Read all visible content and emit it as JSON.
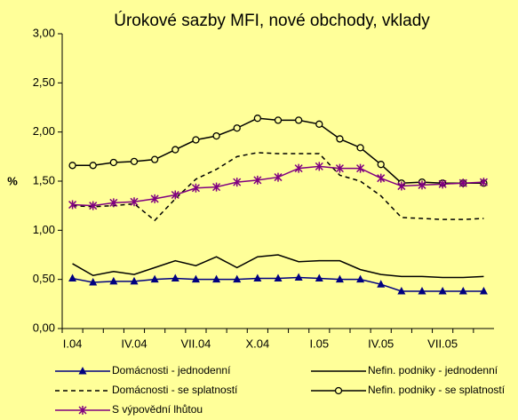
{
  "chart_data": {
    "type": "line",
    "title": "Úrokové sazby MFI, nové obchody, vklady",
    "y_label": "%",
    "categories": [
      "I.04",
      null,
      null,
      "IV.04",
      null,
      null,
      "VII.04",
      null,
      null,
      "X.04",
      null,
      null,
      "I.05",
      null,
      null,
      "IV.05",
      null,
      null,
      "VII.05",
      null,
      null
    ],
    "ylim": [
      0,
      3
    ],
    "yticks": [
      {
        "value": 0,
        "label": "0,00"
      },
      {
        "value": 0.5,
        "label": "0,50"
      },
      {
        "value": 1,
        "label": "1,00"
      },
      {
        "value": 1.5,
        "label": "1,50"
      },
      {
        "value": 2,
        "label": "2,00"
      },
      {
        "value": 2.5,
        "label": "2,50"
      },
      {
        "value": 3,
        "label": "3,00"
      }
    ],
    "series": [
      {
        "name": "Domácnosti - jednodenní",
        "color": "#000080",
        "marker": "triangle",
        "dash": false,
        "values": [
          0.51,
          0.47,
          0.48,
          0.48,
          0.5,
          0.51,
          0.5,
          0.5,
          0.5,
          0.51,
          0.51,
          0.52,
          0.51,
          0.5,
          0.5,
          0.45,
          0.38,
          0.38,
          0.38,
          0.38,
          0.38
        ]
      },
      {
        "name": "Nefin. podniky - jednodenní",
        "color": "#000000",
        "marker": "none",
        "dash": false,
        "values": [
          0.66,
          0.54,
          0.58,
          0.55,
          0.62,
          0.69,
          0.64,
          0.73,
          0.62,
          0.73,
          0.75,
          0.68,
          0.69,
          0.69,
          0.6,
          0.55,
          0.53,
          0.53,
          0.52,
          0.52,
          0.53
        ]
      },
      {
        "name": "Domácnosti - se splatností",
        "color": "#000000",
        "marker": "none",
        "dash": true,
        "values": [
          1.25,
          1.24,
          1.25,
          1.27,
          1.1,
          1.32,
          1.52,
          1.62,
          1.75,
          1.79,
          1.78,
          1.78,
          1.78,
          1.56,
          1.5,
          1.35,
          1.13,
          1.12,
          1.11,
          1.11,
          1.12
        ]
      },
      {
        "name": "Nefin. podniky - se splatností",
        "color": "#000000",
        "marker": "circle",
        "dash": false,
        "values": [
          1.66,
          1.66,
          1.69,
          1.7,
          1.72,
          1.82,
          1.92,
          1.96,
          2.04,
          2.14,
          2.12,
          2.12,
          2.08,
          1.93,
          1.84,
          1.67,
          1.48,
          1.49,
          1.48,
          1.48,
          1.48
        ]
      },
      {
        "name": "S výpovědní lhůtou",
        "color": "#800080",
        "marker": "star",
        "dash": false,
        "values": [
          1.26,
          1.25,
          1.28,
          1.29,
          1.32,
          1.36,
          1.43,
          1.44,
          1.49,
          1.51,
          1.54,
          1.63,
          1.65,
          1.63,
          1.63,
          1.53,
          1.45,
          1.46,
          1.47,
          1.48,
          1.49
        ]
      }
    ]
  }
}
